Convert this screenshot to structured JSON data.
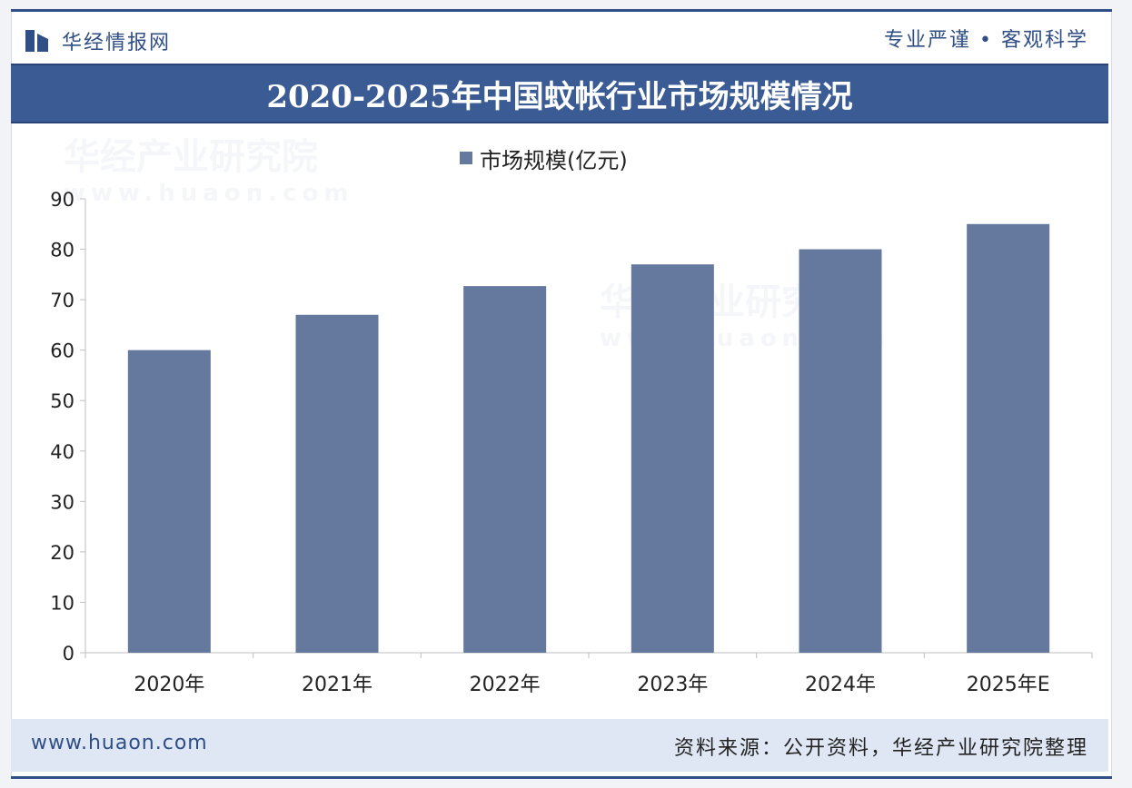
{
  "header": {
    "brand_name": "华经情报网",
    "slogan": "专业严谨 • 客观科学"
  },
  "title": "2020-2025年中国蚊帐行业市场规模情况",
  "watermark": {
    "text": "华经产业研究院",
    "url": "www.huaon.com"
  },
  "footer": {
    "url": "www.huaon.com",
    "source": "资料来源：公开资料，华经产业研究院整理"
  },
  "colors": {
    "bar": "#65799f",
    "brand": "#2f4f86",
    "title_band": "#3b5b94"
  },
  "chart_data": {
    "type": "bar",
    "categories": [
      "2020年",
      "2021年",
      "2022年",
      "2023年",
      "2024年",
      "2025年E"
    ],
    "series": [
      {
        "name": "市场规模(亿元)",
        "values": [
          60,
          67,
          72.7,
          77,
          80,
          85
        ]
      }
    ],
    "yticks": [
      "0",
      "10",
      "20",
      "30",
      "40",
      "50",
      "60",
      "70",
      "80",
      "90"
    ],
    "ylim": [
      0,
      90
    ],
    "grid": false,
    "legend": "top-center"
  }
}
